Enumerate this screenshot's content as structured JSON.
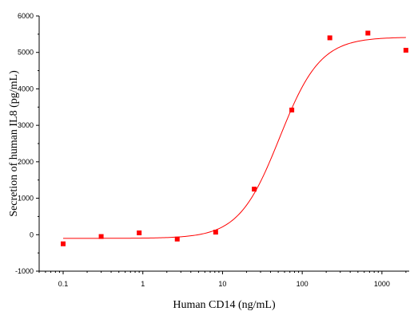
{
  "chart_data": {
    "type": "scatter",
    "title": "",
    "xlabel": "Human CD14 (ng/mL)",
    "ylabel": "Secretion of human IL8 (pg/mL)",
    "xscale": "log",
    "xlim": [
      0.05,
      2200
    ],
    "ylim": [
      -1000,
      6000
    ],
    "grid": false,
    "legend": "none",
    "x_ticks": [
      {
        "value": 0.1,
        "label": "0.1"
      },
      {
        "value": 1,
        "label": "1"
      },
      {
        "value": 10,
        "label": "10"
      },
      {
        "value": 100,
        "label": "100"
      },
      {
        "value": 1000,
        "label": "1000"
      }
    ],
    "y_ticks": [
      {
        "value": -1000,
        "label": "-1000"
      },
      {
        "value": 0,
        "label": "0"
      },
      {
        "value": 1000,
        "label": "1000"
      },
      {
        "value": 2000,
        "label": "2000"
      },
      {
        "value": 3000,
        "label": "3000"
      },
      {
        "value": 4000,
        "label": "4000"
      },
      {
        "value": 5000,
        "label": "5000"
      },
      {
        "value": 6000,
        "label": "6000"
      }
    ],
    "series": [
      {
        "type": "scatter",
        "color": "#ff0000",
        "marker": "square",
        "points": [
          {
            "x": 0.1,
            "y": -250
          },
          {
            "x": 0.3,
            "y": -50
          },
          {
            "x": 0.9,
            "y": 50
          },
          {
            "x": 2.7,
            "y": -120
          },
          {
            "x": 8.2,
            "y": 70
          },
          {
            "x": 25,
            "y": 1250
          },
          {
            "x": 74,
            "y": 3420
          },
          {
            "x": 222,
            "y": 5400
          },
          {
            "x": 667,
            "y": 5530
          },
          {
            "x": 2000,
            "y": 5060
          }
        ]
      },
      {
        "type": "line",
        "color": "#ff0000",
        "fit": "four-parameter logistic",
        "bottom": -100,
        "top": 5420,
        "ec50": 52,
        "hill": 1.7,
        "x_range": [
          0.1,
          2000
        ]
      }
    ]
  }
}
